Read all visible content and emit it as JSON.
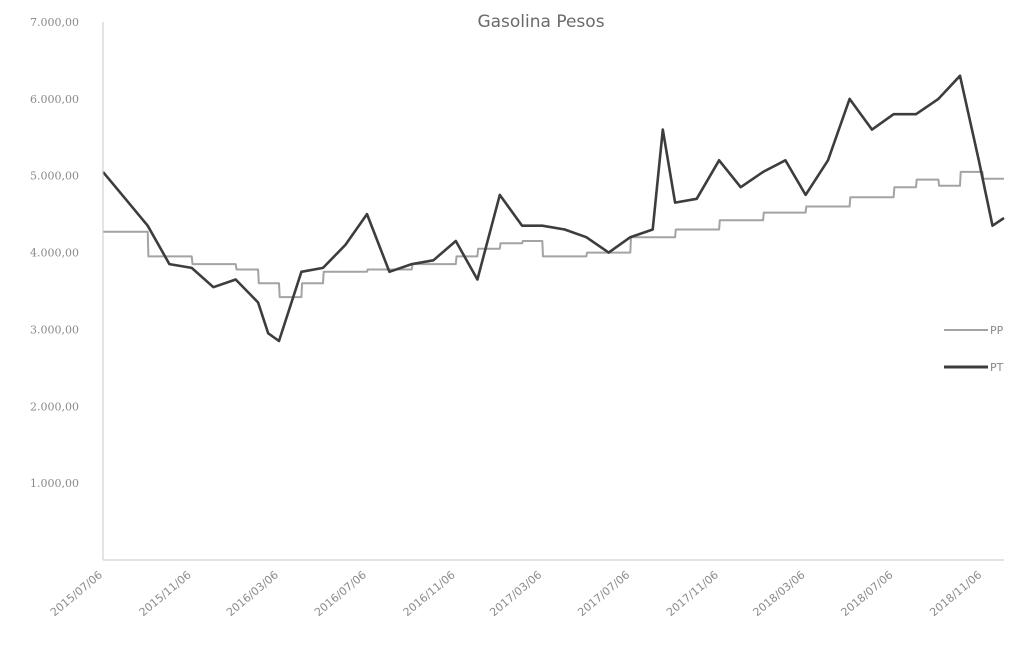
{
  "chart_data": {
    "type": "line",
    "title": "Gasolina Pesos",
    "xlabel": "",
    "ylabel": "",
    "ylim": [
      0,
      7000
    ],
    "y_ticks": [
      "1.000,00",
      "2.000,00",
      "3.000,00",
      "4.000,00",
      "5.000,00",
      "6.000,00",
      "7.000,00"
    ],
    "y_tick_values": [
      1000,
      2000,
      3000,
      4000,
      5000,
      6000,
      7000
    ],
    "x_ticks": [
      "2015/07/06",
      "2015/11/06",
      "2016/03/06",
      "2016/07/06",
      "2016/11/06",
      "2017/03/06",
      "2017/07/06",
      "2017/11/06",
      "2018/03/06",
      "2018/07/06",
      "2018/11/06"
    ],
    "grid": false,
    "legend_position": "right",
    "series": [
      {
        "name": "PP",
        "color": "#a3a3a3",
        "x": [
          "2015/07/06",
          "2015/09/06",
          "2015/09/07",
          "2015/11/06",
          "2015/11/07",
          "2016/01/06",
          "2016/01/07",
          "2016/02/06",
          "2016/02/07",
          "2016/03/06",
          "2016/03/07",
          "2016/04/06",
          "2016/04/07",
          "2016/05/06",
          "2016/05/07",
          "2016/07/06",
          "2016/07/07",
          "2016/09/06",
          "2016/09/07",
          "2016/11/06",
          "2016/11/07",
          "2016/12/06",
          "2016/12/07",
          "2017/01/06",
          "2017/01/07",
          "2017/02/06",
          "2017/02/07",
          "2017/03/06",
          "2017/03/07",
          "2017/05/06",
          "2017/05/07",
          "2017/07/06",
          "2017/07/07",
          "2017/09/06",
          "2017/09/07",
          "2017/11/06",
          "2017/11/07",
          "2018/01/06",
          "2018/01/07",
          "2018/03/06",
          "2018/03/07",
          "2018/05/06",
          "2018/05/07",
          "2018/07/06",
          "2018/07/07",
          "2018/08/06",
          "2018/08/07",
          "2018/09/06",
          "2018/09/07",
          "2018/10/06",
          "2018/10/07",
          "2018/11/06",
          "2018/11/07",
          "2018/12/06"
        ],
        "values": [
          4270,
          4270,
          3950,
          3950,
          3850,
          3850,
          3780,
          3780,
          3600,
          3600,
          3420,
          3420,
          3600,
          3600,
          3750,
          3750,
          3780,
          3780,
          3850,
          3850,
          3950,
          3950,
          4050,
          4050,
          4120,
          4120,
          4150,
          4150,
          3950,
          3950,
          4000,
          4000,
          4200,
          4200,
          4300,
          4300,
          4420,
          4420,
          4520,
          4520,
          4600,
          4600,
          4720,
          4720,
          4850,
          4850,
          4950,
          4950,
          4870,
          4870,
          5050,
          5050,
          4960,
          4960
        ]
      },
      {
        "name": "PT",
        "color": "#3d3d3d",
        "x": [
          "2015/07/06",
          "2015/08/06",
          "2015/09/06",
          "2015/10/06",
          "2015/11/06",
          "2015/12/06",
          "2016/01/06",
          "2016/02/06",
          "2016/02/20",
          "2016/03/06",
          "2016/04/06",
          "2016/05/06",
          "2016/06/06",
          "2016/07/06",
          "2016/08/06",
          "2016/09/06",
          "2016/10/06",
          "2016/11/06",
          "2016/12/06",
          "2017/01/06",
          "2017/02/06",
          "2017/03/06",
          "2017/04/06",
          "2017/05/06",
          "2017/06/06",
          "2017/07/06",
          "2017/08/06",
          "2017/08/20",
          "2017/09/06",
          "2017/10/06",
          "2017/11/06",
          "2017/12/06",
          "2018/01/06",
          "2018/02/06",
          "2018/03/06",
          "2018/04/06",
          "2018/05/06",
          "2018/06/06",
          "2018/07/06",
          "2018/08/06",
          "2018/09/06",
          "2018/10/06",
          "2018/11/01",
          "2018/11/20",
          "2018/12/06"
        ],
        "values": [
          5050,
          4700,
          4350,
          3850,
          3800,
          3550,
          3650,
          3350,
          2950,
          2850,
          3750,
          3800,
          4100,
          4500,
          3750,
          3850,
          3900,
          4150,
          3650,
          4750,
          4350,
          4350,
          4300,
          4200,
          4000,
          4200,
          4300,
          5600,
          4650,
          4700,
          5200,
          4850,
          5050,
          5200,
          4750,
          5200,
          6000,
          5600,
          5800,
          5800,
          6000,
          6300,
          5200,
          4350,
          4450
        ]
      }
    ]
  }
}
